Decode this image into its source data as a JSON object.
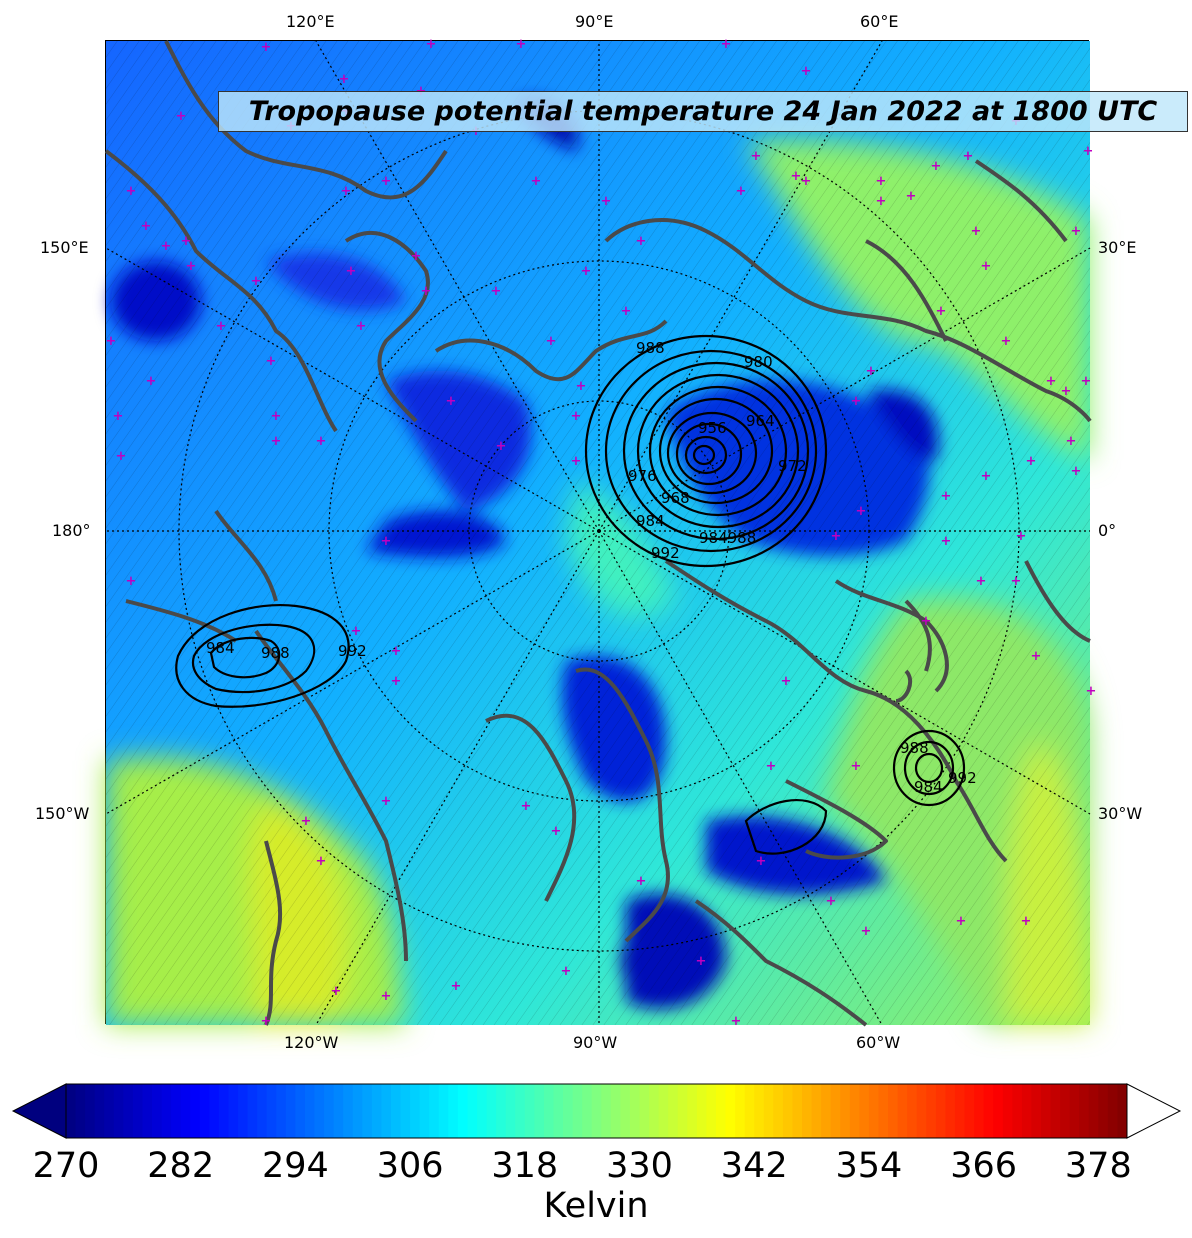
{
  "title": "Tropopause potential temperature 24 Jan 2022 at 1800 UTC",
  "map": {
    "projection": "north-polar-stereographic",
    "graticule_style": "dotted",
    "coastline_color": "#444444",
    "marker_color": "#c000c0",
    "marker_symbol": "+",
    "top_labels": [
      "120°E",
      "90°E",
      "60°E"
    ],
    "bottom_labels": [
      "120°W",
      "90°W",
      "60°W"
    ],
    "left_labels": [
      "150°E",
      "180°",
      "150°W"
    ],
    "right_labels": [
      "30°E",
      "0°",
      "30°W"
    ]
  },
  "pressure_contours": {
    "color": "#000000",
    "low_centers": [
      {
        "name": "north-atlantic-low",
        "labels": [
          "988",
          "980",
          "956",
          "964",
          "972",
          "976",
          "968",
          "984",
          "992",
          "984988"
        ]
      },
      {
        "name": "north-pacific-low",
        "labels": [
          "984",
          "988",
          "992"
        ]
      },
      {
        "name": "small-atlantic-low",
        "labels": [
          "988",
          "984",
          "992"
        ]
      }
    ]
  },
  "colorbar": {
    "colormap": "jet",
    "extend": "both",
    "vmin": 270,
    "vmax": 381,
    "ticks": [
      "270",
      "282",
      "294",
      "306",
      "318",
      "330",
      "342",
      "354",
      "366",
      "378"
    ],
    "label": "Kelvin",
    "under_color": "#00007f",
    "over_color": "#ffffff"
  }
}
